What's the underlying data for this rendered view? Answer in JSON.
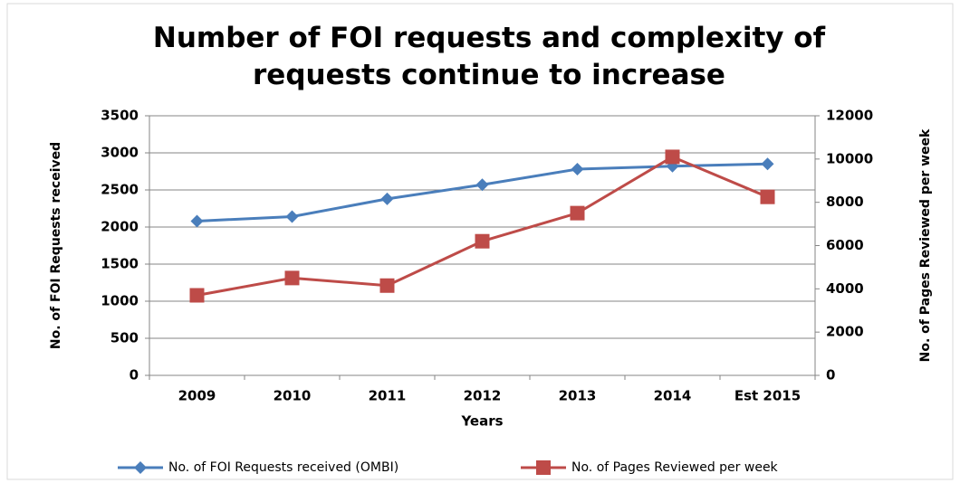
{
  "chart_data": {
    "type": "line",
    "title": "Number of FOI requests and complexity of requests continue to increase",
    "x_label": "Years",
    "y_label": "No. of FOI Requests received",
    "y2_label": "No. of Pages Reviewed per week",
    "categories": [
      "2009",
      "2010",
      "2011",
      "2012",
      "2013",
      "2014",
      "Est 2015"
    ],
    "series": [
      {
        "name": "No. of FOI Requests received (OMBI)",
        "color": "#4a7ebb",
        "marker": "diamond",
        "values": [
          2080,
          2140,
          2380,
          2570,
          2780,
          2820,
          2850
        ]
      },
      {
        "name": "No. of Pages Reviewed per week",
        "color": "#be4b48",
        "marker": "square",
        "axis": "y2",
        "values": [
          3700,
          4500,
          4150,
          6200,
          7500,
          10100,
          8250
        ]
      }
    ],
    "ylim": [
      0,
      3500
    ],
    "yticks": [
      0,
      500,
      1000,
      1500,
      2000,
      2500,
      3000,
      3500
    ],
    "y2lim": [
      0,
      12000
    ],
    "y2ticks": [
      0,
      2000,
      4000,
      6000,
      8000,
      10000,
      12000
    ],
    "grid": true,
    "legend": "bottom"
  }
}
